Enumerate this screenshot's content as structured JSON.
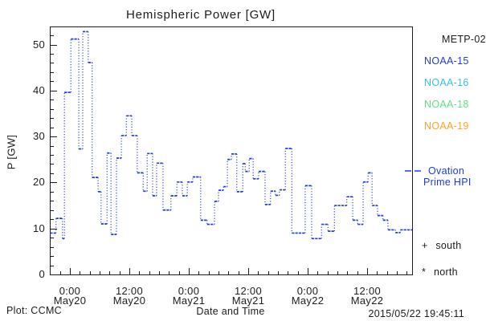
{
  "title": "Hemispheric Power [GW]",
  "footer": {
    "plot_source": "Plot: CCMC",
    "xaxis_title": "Date and Time",
    "timestamp": "2015/05/22 19:45:11"
  },
  "y_axis": {
    "label": "P [GW]",
    "tick_labels": [
      "0",
      "10",
      "20",
      "30",
      "40",
      "50"
    ],
    "minor_step_gw": 2
  },
  "x_axis": {
    "minor_step_hours": 2,
    "major_ticks": [
      {
        "hour": 0,
        "time": "0:00",
        "date": "May20"
      },
      {
        "hour": 12,
        "time": "12:00",
        "date": "May20"
      },
      {
        "hour": 24,
        "time": "0:00",
        "date": "May21"
      },
      {
        "hour": 36,
        "time": "12:00",
        "date": "May21"
      },
      {
        "hour": 48,
        "time": "0:00",
        "date": "May22"
      },
      {
        "hour": 60,
        "time": "12:00",
        "date": "May22"
      }
    ]
  },
  "legend": {
    "satellites": [
      {
        "label": "METP-02",
        "color": "#1c1c1c",
        "indent": true
      },
      {
        "label": "NOAA-15",
        "color": "#1f3bd9",
        "indent": false
      },
      {
        "label": "NOAA-16",
        "color": "#33c0f0",
        "indent": false
      },
      {
        "label": "NOAA-18",
        "color": "#5fe084",
        "indent": false
      },
      {
        "label": "NOAA-19",
        "color": "#ffa326",
        "indent": false
      }
    ],
    "ovation": {
      "line1": "Ovation",
      "line2": "Prime HPI",
      "color": "#1f3bd9"
    },
    "hemisphere_markers": [
      {
        "symbol": "+",
        "label": "south"
      },
      {
        "symbol": "*",
        "label": "north"
      }
    ]
  },
  "colors": {
    "line": "#1f3bd9",
    "axis": "#1c1c1c",
    "background": "#ffffff"
  },
  "chart_data": {
    "type": "line",
    "subtype": "step-post",
    "title": "Hemispheric Power [GW]",
    "xlabel": "Date and Time",
    "ylabel": "P [GW]",
    "ylim": [
      0,
      53.9
    ],
    "yticks": [
      0,
      10,
      20,
      30,
      40,
      50
    ],
    "x_hours_range": [
      -4.05,
      69.08
    ],
    "x_reference": "hours since 2015-05-20 00:00 UT",
    "x_major_tick_hours": [
      0,
      12,
      24,
      36,
      48,
      60
    ],
    "grid": false,
    "legend_position": "right-outside",
    "series": [
      {
        "name": "Hemispheric Power / Ovation Prime HPI",
        "color": "#1f3bd9",
        "style": "horizontal dashes with dotted vertical steps",
        "points_hour_gw": [
          [
            -4.0,
            9.0
          ],
          [
            -2.8,
            12.2
          ],
          [
            -1.5,
            7.8
          ],
          [
            -1.1,
            39.6
          ],
          [
            0.2,
            51.2
          ],
          [
            1.8,
            27.3
          ],
          [
            2.6,
            52.8
          ],
          [
            3.7,
            46.1
          ],
          [
            4.5,
            21.1
          ],
          [
            5.7,
            18.0
          ],
          [
            6.3,
            11.0
          ],
          [
            7.5,
            26.4
          ],
          [
            8.3,
            8.7
          ],
          [
            9.4,
            25.3
          ],
          [
            10.4,
            30.2
          ],
          [
            11.4,
            34.5
          ],
          [
            12.5,
            30.2
          ],
          [
            13.6,
            22.1
          ],
          [
            14.8,
            18.1
          ],
          [
            15.6,
            26.3
          ],
          [
            16.7,
            17.1
          ],
          [
            17.5,
            24.2
          ],
          [
            18.8,
            14.0
          ],
          [
            20.4,
            17.1
          ],
          [
            21.6,
            20.1
          ],
          [
            22.7,
            17.1
          ],
          [
            23.7,
            20.1
          ],
          [
            24.8,
            21.2
          ],
          [
            26.4,
            11.8
          ],
          [
            27.7,
            10.9
          ],
          [
            29.2,
            15.9
          ],
          [
            30.0,
            18.3
          ],
          [
            31.0,
            19.1
          ],
          [
            31.8,
            25.0
          ],
          [
            32.6,
            26.2
          ],
          [
            33.7,
            18.0
          ],
          [
            34.9,
            24.1
          ],
          [
            35.4,
            22.4
          ],
          [
            36.2,
            25.2
          ],
          [
            37.0,
            20.8
          ],
          [
            38.1,
            22.4
          ],
          [
            39.4,
            15.2
          ],
          [
            40.5,
            18.1
          ],
          [
            41.5,
            17.2
          ],
          [
            42.3,
            18.4
          ],
          [
            43.5,
            27.4
          ],
          [
            44.8,
            9.0
          ],
          [
            47.5,
            19.3
          ],
          [
            48.8,
            7.8
          ],
          [
            50.8,
            10.9
          ],
          [
            52.1,
            9.4
          ],
          [
            53.4,
            15.0
          ],
          [
            55.9,
            16.9
          ],
          [
            57.1,
            11.8
          ],
          [
            58.1,
            10.9
          ],
          [
            59.2,
            20.1
          ],
          [
            60.2,
            22.1
          ],
          [
            61.0,
            15.0
          ],
          [
            62.1,
            12.8
          ],
          [
            63.2,
            11.8
          ],
          [
            64.2,
            9.7
          ],
          [
            65.7,
            9.1
          ],
          [
            66.7,
            9.7
          ]
        ],
        "end_hour": 69.08
      }
    ]
  }
}
